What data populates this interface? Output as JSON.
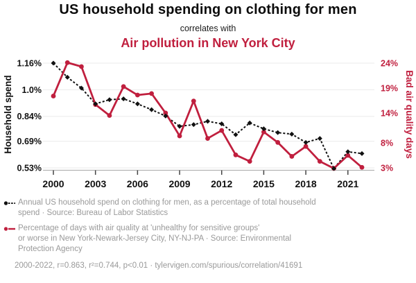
{
  "header": {
    "title": "US household spending on clothing for men",
    "subtitle": "correlates with",
    "title2": "Air pollution in New York City"
  },
  "colors": {
    "household": "#111111",
    "air": "#c01f3e",
    "caption": "#999999",
    "grid": "#ebebeb",
    "axis_line": "#b3b3b3",
    "tick": "#444444"
  },
  "chart_data": {
    "type": "line",
    "x": [
      2000,
      2001,
      2002,
      2003,
      2004,
      2005,
      2006,
      2007,
      2008,
      2009,
      2010,
      2011,
      2012,
      2013,
      2014,
      2015,
      2016,
      2017,
      2018,
      2019,
      2020,
      2021,
      2022
    ],
    "x_ticks": [
      2000,
      2003,
      2006,
      2009,
      2012,
      2015,
      2018,
      2021
    ],
    "series": [
      {
        "name": "Annual US household spend on clothing for men (% of total household spend)",
        "axis": "left",
        "color": "#111111",
        "style": "dashed",
        "marker": "diamond",
        "values": [
          1.16,
          1.075,
          1.01,
          0.915,
          0.94,
          0.945,
          0.915,
          0.88,
          0.842,
          0.78,
          0.79,
          0.81,
          0.795,
          0.73,
          0.8,
          0.765,
          0.742,
          0.733,
          0.683,
          0.707,
          0.526,
          0.627,
          0.616
        ]
      },
      {
        "name": "Percentage of days with bad air quality in New York-Newark-Jersey City, NY-NJ-PA",
        "axis": "right",
        "color": "#c01f3e",
        "style": "solid",
        "marker": "circle",
        "values": [
          17.4,
          24.1,
          23.3,
          15.7,
          13.5,
          19.3,
          17.6,
          17.9,
          14.0,
          9.4,
          16.4,
          8.9,
          10.5,
          5.6,
          4.3,
          10.2,
          8.1,
          5.3,
          7.3,
          4.3,
          2.9,
          5.5,
          3.1
        ]
      }
    ],
    "left_axis": {
      "label": "Household spend",
      "min": 0.53,
      "max": 1.16,
      "ticks": [
        {
          "v": 1.16,
          "label": "1.16%"
        },
        {
          "v": 1.0,
          "label": "1.0%"
        },
        {
          "v": 0.84,
          "label": "0.84%"
        },
        {
          "v": 0.69,
          "label": "0.69%"
        },
        {
          "v": 0.53,
          "label": "0.53%"
        }
      ]
    },
    "right_axis": {
      "label": "Bad air quality days",
      "min": 3,
      "max": 24,
      "ticks": [
        {
          "v": 24,
          "label": "24%"
        },
        {
          "v": 19,
          "label": "19%"
        },
        {
          "v": 14,
          "label": "14%"
        },
        {
          "v": 8,
          "label": "8%"
        },
        {
          "v": 3,
          "label": "3%"
        }
      ]
    },
    "grid": "horizontal",
    "legend_position": "below"
  },
  "captions": {
    "legend1": {
      "lines": [
        "Annual US household spend on clothing for men, as a percentage of total household",
        "spend · Source: Bureau of Labor Statistics"
      ]
    },
    "legend2": {
      "lines": [
        "Percentage of days with air quality at 'unhealthy for sensitive groups'",
        "or worse in New York-Newark-Jersey City, NY-NJ-PA · Source: Environmental",
        "Protection Agency"
      ]
    },
    "stats": "2000-2022, r=0.863, r²=0.744, p<0.01 · tylervigen.com/spurious/correlation/41691"
  }
}
